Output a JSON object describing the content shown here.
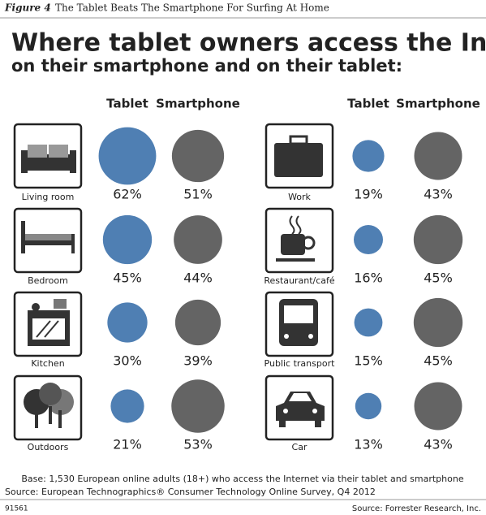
{
  "figure_label": "Figure 4",
  "figure_title": "The Tablet Beats The Smartphone For Surfing At Home",
  "chart_data": {
    "type": "bubble",
    "title": "Where tablet owners access the Internet",
    "subtitle": "on their smartphone and on their tablet:",
    "categories": [
      "Living room",
      "Bedroom",
      "Kitchen",
      "Outdoors",
      "Work",
      "Restaurant/café",
      "Public transport",
      "Car"
    ],
    "series": [
      {
        "name": "Tablet",
        "color": "#4f7fb3",
        "values": [
          62,
          45,
          30,
          21,
          19,
          16,
          15,
          13
        ],
        "value_labels": [
          "62%",
          "45%",
          "30%",
          "21%",
          "19%",
          "16%",
          "15%",
          "13%"
        ]
      },
      {
        "name": "Smartphone",
        "color": "#646464",
        "values": [
          51,
          44,
          39,
          53,
          43,
          45,
          45,
          43
        ],
        "value_labels": [
          "51%",
          "44%",
          "39%",
          "53%",
          "43%",
          "45%",
          "45%",
          "43%"
        ]
      }
    ]
  },
  "base_note": "Base: 1,530 European online adults (18+) who access the Internet via their tablet and smartphone",
  "source": "Source: European Technographics® Consumer Technology Online Survey, Q4 2012",
  "figure_id": "91561",
  "credit": "Source: Forrester Research, Inc."
}
